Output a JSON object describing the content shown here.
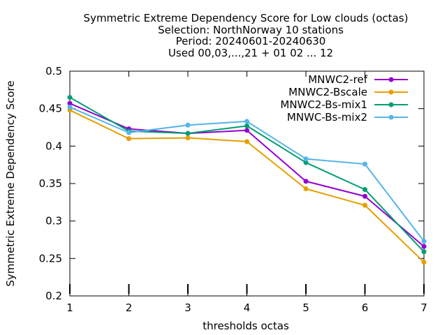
{
  "chart_data": {
    "type": "line",
    "title_lines": [
      "Symmetric Extreme Dependency Score  for Low clouds (octas)",
      "Selection: NorthNorway     10 stations",
      "Period: 20240601-20240630",
      "Used 00,03,...,21 + 01 02 ... 12"
    ],
    "xlabel": "thresholds octas",
    "ylabel": "Symmetric Extreme Dependency Score",
    "x": [
      1,
      2,
      3,
      4,
      5,
      6,
      7
    ],
    "xlim": [
      1,
      7
    ],
    "ylim": [
      0.2,
      0.5
    ],
    "x_ticks": [
      "1",
      "2",
      "3",
      "4",
      "5",
      "6",
      "7"
    ],
    "y_ticks": [
      "0.2",
      "0.25",
      "0.3",
      "0.35",
      "0.4",
      "0.45",
      "0.5"
    ],
    "y_tick_values": [
      0.2,
      0.25,
      0.3,
      0.35,
      0.4,
      0.45,
      0.5
    ],
    "grid": false,
    "legend_position": "top-right",
    "series": [
      {
        "name": "MNWC2-ref",
        "color": "#9400d3",
        "values": [
          0.457,
          0.423,
          0.417,
          0.421,
          0.353,
          0.333,
          0.266
        ]
      },
      {
        "name": "MNWC2-Bscale",
        "color": "#e69f00",
        "values": [
          0.448,
          0.41,
          0.411,
          0.406,
          0.343,
          0.321,
          0.245
        ]
      },
      {
        "name": "MNWC2-Bs-mix1",
        "color": "#009e73",
        "values": [
          0.465,
          0.42,
          0.417,
          0.427,
          0.378,
          0.342,
          0.259
        ]
      },
      {
        "name": "MNWC-Bs-mix2",
        "color": "#56b4e9",
        "values": [
          0.452,
          0.418,
          0.428,
          0.433,
          0.383,
          0.376,
          0.273
        ]
      }
    ]
  }
}
